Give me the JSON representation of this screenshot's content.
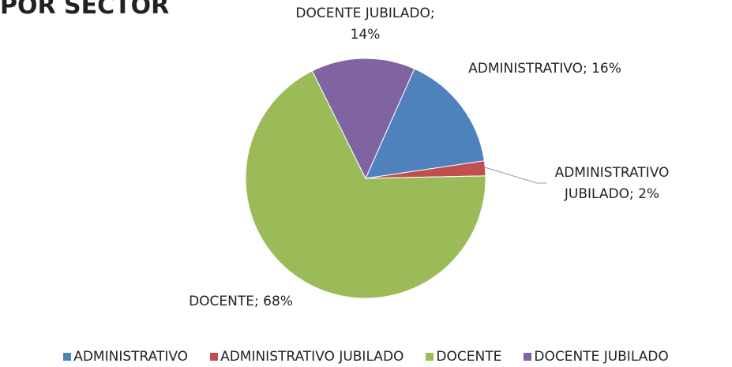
{
  "chart_data": {
    "type": "pie",
    "title": "POR SECTOR",
    "categories": [
      "ADMINISTRATIVO",
      "ADMINISTRATIVO JUBILADO",
      "DOCENTE",
      "DOCENTE JUBILADO"
    ],
    "values": [
      16,
      2,
      68,
      14
    ],
    "value_labels": [
      "ADMINISTRATIVO; 16%",
      "ADMINISTRATIVO JUBILADO; 2%",
      "DOCENTE; 68%",
      "DOCENTE JUBILADO; 14%"
    ],
    "colors": [
      "#4f81bd",
      "#c0504d",
      "#9bbb59",
      "#8064a2"
    ],
    "legend": "bottom"
  }
}
